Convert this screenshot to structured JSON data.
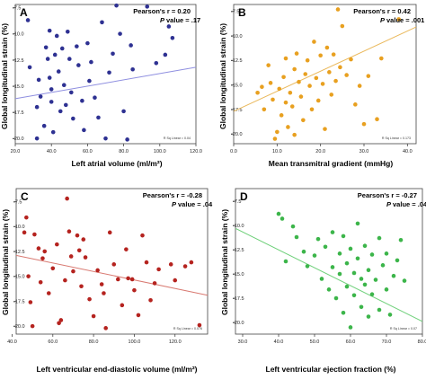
{
  "colors": {
    "A": "#2e3192",
    "B": "#e8a020",
    "C": "#b5231f",
    "D": "#3cb54a",
    "line_A": "#8f8fe0",
    "line_B": "#eab85a",
    "line_C": "#d97a72",
    "line_D": "#6fd07a"
  },
  "chart_data": [
    {
      "type": "scatter",
      "panel": "A",
      "xlabel": "Left atrial volume (ml/m²)",
      "ylabel": "Global longitudinal strain (%)",
      "xlim": [
        20,
        120
      ],
      "ylim": [
        -20.5,
        -7.2
      ],
      "xticks": [
        "20.0",
        "40.0",
        "60.0",
        "80.0",
        "100.0",
        "120.0"
      ],
      "yticks": [
        "-7.5",
        "-10.0",
        "-12.5",
        "-15.0",
        "-17.5",
        "-20.0"
      ],
      "stat_line1": "Pearson's r = 0.20",
      "stat_p_label": "P",
      "stat_p_value": "value = .17",
      "r_sq_label": "R Sq Linear = 0.04",
      "fit": {
        "x": [
          20,
          120
        ],
        "y": [
          -16.2,
          -13.2
        ]
      },
      "points": [
        {
          "x": 27,
          "y": -8.7
        },
        {
          "x": 28,
          "y": -13.2
        },
        {
          "x": 32,
          "y": -17.0
        },
        {
          "x": 32,
          "y": -20.0
        },
        {
          "x": 33,
          "y": -14.4
        },
        {
          "x": 34,
          "y": -16.0
        },
        {
          "x": 36,
          "y": -18.8
        },
        {
          "x": 37,
          "y": -11.3
        },
        {
          "x": 38,
          "y": -12.4
        },
        {
          "x": 39,
          "y": -9.7
        },
        {
          "x": 39,
          "y": -14.2
        },
        {
          "x": 40,
          "y": -15.3
        },
        {
          "x": 40,
          "y": -16.5
        },
        {
          "x": 41,
          "y": -19.4
        },
        {
          "x": 42,
          "y": -12.0
        },
        {
          "x": 43,
          "y": -10.2
        },
        {
          "x": 44,
          "y": -13.6
        },
        {
          "x": 45,
          "y": -17.4
        },
        {
          "x": 46,
          "y": -11.4
        },
        {
          "x": 47,
          "y": -14.9
        },
        {
          "x": 48,
          "y": -16.8
        },
        {
          "x": 49,
          "y": -9.8
        },
        {
          "x": 50,
          "y": -12.4
        },
        {
          "x": 51,
          "y": -15.6
        },
        {
          "x": 52,
          "y": -18.1
        },
        {
          "x": 54,
          "y": -11.2
        },
        {
          "x": 55,
          "y": -13.0
        },
        {
          "x": 57,
          "y": -16.4
        },
        {
          "x": 58,
          "y": -19.2
        },
        {
          "x": 60,
          "y": -10.9
        },
        {
          "x": 61,
          "y": -14.5
        },
        {
          "x": 62,
          "y": -12.7
        },
        {
          "x": 64,
          "y": -16.1
        },
        {
          "x": 66,
          "y": -18.0
        },
        {
          "x": 68,
          "y": -8.9
        },
        {
          "x": 70,
          "y": -20.0
        },
        {
          "x": 72,
          "y": -13.7
        },
        {
          "x": 74,
          "y": -11.9
        },
        {
          "x": 76,
          "y": -7.3
        },
        {
          "x": 78,
          "y": -10.0
        },
        {
          "x": 80,
          "y": -17.4
        },
        {
          "x": 82,
          "y": -20.1
        },
        {
          "x": 84,
          "y": -11.1
        },
        {
          "x": 85,
          "y": -13.4
        },
        {
          "x": 93,
          "y": -7.4
        },
        {
          "x": 98,
          "y": -12.8
        },
        {
          "x": 103,
          "y": -12.0
        },
        {
          "x": 105,
          "y": -9.3
        },
        {
          "x": 107,
          "y": -10.4
        }
      ]
    },
    {
      "type": "scatter",
      "panel": "B",
      "xlabel": "Mean transmitral gradient (mmHg)",
      "ylabel": "Global longitudinal strain (%)",
      "xlim": [
        0,
        42
      ],
      "ylim": [
        -21.0,
        -6.8
      ],
      "xticks": [
        "0.0",
        "10.0",
        "20.0",
        "30.0",
        "40.0"
      ],
      "yticks": [
        "-7.5",
        "-10.0",
        "-12.5",
        "-15.0",
        "-17.5",
        "-20.0"
      ],
      "stat_line1": "Pearson's r = 0.42",
      "stat_p_label": "P",
      "stat_p_value": "value = .001",
      "r_sq_label": "R Sq Linear = 0.173",
      "fit": {
        "x": [
          0,
          42
        ],
        "y": [
          -17.7,
          -9.1
        ]
      },
      "points": [
        {
          "x": 5.5,
          "y": -15.8
        },
        {
          "x": 6.5,
          "y": -15.2
        },
        {
          "x": 7,
          "y": -17.5
        },
        {
          "x": 8,
          "y": -13.0
        },
        {
          "x": 8.5,
          "y": -14.8
        },
        {
          "x": 9,
          "y": -16.5
        },
        {
          "x": 9.5,
          "y": -20.5
        },
        {
          "x": 10,
          "y": -19.8
        },
        {
          "x": 10.5,
          "y": -15.4
        },
        {
          "x": 11,
          "y": -18.1
        },
        {
          "x": 11.5,
          "y": -14.2
        },
        {
          "x": 12,
          "y": -16.8
        },
        {
          "x": 12,
          "y": -12.3
        },
        {
          "x": 12.5,
          "y": -19.3
        },
        {
          "x": 13,
          "y": -15.8
        },
        {
          "x": 13.5,
          "y": -17.2
        },
        {
          "x": 14,
          "y": -13.4
        },
        {
          "x": 14,
          "y": -20.1
        },
        {
          "x": 14.5,
          "y": -11.8
        },
        {
          "x": 15,
          "y": -14.7
        },
        {
          "x": 15.5,
          "y": -16.2
        },
        {
          "x": 16,
          "y": -18.6
        },
        {
          "x": 16.5,
          "y": -13.9
        },
        {
          "x": 17,
          "y": -12.5
        },
        {
          "x": 17.5,
          "y": -15.1
        },
        {
          "x": 18,
          "y": -17.5
        },
        {
          "x": 18.5,
          "y": -10.6
        },
        {
          "x": 19,
          "y": -14.3
        },
        {
          "x": 19.5,
          "y": -16.6
        },
        {
          "x": 20,
          "y": -12.0
        },
        {
          "x": 20.5,
          "y": -14.9
        },
        {
          "x": 21,
          "y": -19.5
        },
        {
          "x": 21.5,
          "y": -11.2
        },
        {
          "x": 22,
          "y": -13.7
        },
        {
          "x": 22.5,
          "y": -16.0
        },
        {
          "x": 23,
          "y": -11.9
        },
        {
          "x": 23.5,
          "y": -14.6
        },
        {
          "x": 24,
          "y": -7.3
        },
        {
          "x": 24.5,
          "y": -13.2
        },
        {
          "x": 25,
          "y": -9.0
        },
        {
          "x": 26,
          "y": -14.0
        },
        {
          "x": 27,
          "y": -12.4
        },
        {
          "x": 28,
          "y": -17.0
        },
        {
          "x": 29,
          "y": -15.1
        },
        {
          "x": 30,
          "y": -19.0
        },
        {
          "x": 31,
          "y": -14.1
        },
        {
          "x": 33,
          "y": -18.5
        },
        {
          "x": 34,
          "y": -12.3
        },
        {
          "x": 38,
          "y": -8.3
        }
      ]
    },
    {
      "type": "scatter",
      "panel": "C",
      "xlabel": "Left ventricular end-diastolic volume (ml/m²)",
      "ylabel": "Global longitudinal strain (%)",
      "xlim": [
        42,
        136
      ],
      "ylim": [
        -20.8,
        -6.2
      ],
      "xticks": [
        "40.0",
        "60.0",
        "80.0",
        "100.0",
        "120.0"
      ],
      "yticks": [
        "-7.5",
        "-10.0",
        "-12.5",
        "-15.0",
        "-17.5",
        "-20.0"
      ],
      "stat_line1": "Pearson's r = -0.28",
      "stat_p_label": "P",
      "stat_p_value": "value = .04",
      "r_sq_label": "R Sq Linear = 0.076",
      "fit": {
        "x": [
          42,
          136
        ],
        "y": [
          -12.9,
          -16.9
        ]
      },
      "points": [
        {
          "x": 46,
          "y": -10.6
        },
        {
          "x": 47,
          "y": -9.1
        },
        {
          "x": 48,
          "y": -15.0
        },
        {
          "x": 49,
          "y": -17.6
        },
        {
          "x": 50,
          "y": -20.0
        },
        {
          "x": 51,
          "y": -10.8
        },
        {
          "x": 53,
          "y": -12.2
        },
        {
          "x": 54,
          "y": -15.6
        },
        {
          "x": 55,
          "y": -13.2
        },
        {
          "x": 56,
          "y": -12.5
        },
        {
          "x": 58,
          "y": -16.7
        },
        {
          "x": 60,
          "y": -14.2
        },
        {
          "x": 62,
          "y": -11.8
        },
        {
          "x": 63,
          "y": -19.7
        },
        {
          "x": 64,
          "y": -19.4
        },
        {
          "x": 66,
          "y": -15.4
        },
        {
          "x": 67,
          "y": -7.2
        },
        {
          "x": 68,
          "y": -10.5
        },
        {
          "x": 69,
          "y": -13.0
        },
        {
          "x": 70,
          "y": -14.5
        },
        {
          "x": 72,
          "y": -10.9
        },
        {
          "x": 73,
          "y": -12.4
        },
        {
          "x": 74,
          "y": -16.0
        },
        {
          "x": 75,
          "y": -11.3
        },
        {
          "x": 76,
          "y": -13.1
        },
        {
          "x": 78,
          "y": -17.3
        },
        {
          "x": 80,
          "y": -19.0
        },
        {
          "x": 82,
          "y": -14.4
        },
        {
          "x": 84,
          "y": -15.8
        },
        {
          "x": 85,
          "y": -16.7
        },
        {
          "x": 86,
          "y": -20.2
        },
        {
          "x": 88,
          "y": -10.6
        },
        {
          "x": 90,
          "y": -13.8
        },
        {
          "x": 92,
          "y": -15.3
        },
        {
          "x": 94,
          "y": -17.9
        },
        {
          "x": 96,
          "y": -12.3
        },
        {
          "x": 97,
          "y": -15.2
        },
        {
          "x": 99,
          "y": -15.3
        },
        {
          "x": 100,
          "y": -16.4
        },
        {
          "x": 102,
          "y": -18.9
        },
        {
          "x": 104,
          "y": -10.9
        },
        {
          "x": 106,
          "y": -13.6
        },
        {
          "x": 108,
          "y": -17.4
        },
        {
          "x": 110,
          "y": -15.7
        },
        {
          "x": 112,
          "y": -14.3
        },
        {
          "x": 118,
          "y": -13.8
        },
        {
          "x": 120,
          "y": -15.4
        },
        {
          "x": 125,
          "y": -14.0
        },
        {
          "x": 128,
          "y": -13.6
        },
        {
          "x": 132,
          "y": -19.9
        }
      ]
    },
    {
      "type": "scatter",
      "panel": "D",
      "xlabel": "Left ventricular ejection fraction (%)",
      "ylabel": "Global longitudinal strain (%)",
      "xlim": [
        28,
        80
      ],
      "ylim": [
        -21.2,
        -6.2
      ],
      "xticks": [
        "30.0",
        "40.0",
        "50.0",
        "60.0",
        "70.0",
        "80.0"
      ],
      "yticks": [
        "-7.5",
        "-10.0",
        "-12.5",
        "-15.0",
        "-17.5",
        "-20.0"
      ],
      "stat_line1": "Pearson's r = -0.27",
      "stat_p_label": "P",
      "stat_p_value": "value = .046",
      "r_sq_label": "R Sq Linear = 0.07",
      "fit": {
        "x": [
          28,
          80
        ],
        "y": [
          -10.3,
          -19.9
        ]
      },
      "points": [
        {
          "x": 40,
          "y": -8.8
        },
        {
          "x": 41,
          "y": -9.3
        },
        {
          "x": 42,
          "y": -13.7
        },
        {
          "x": 44,
          "y": -10.1
        },
        {
          "x": 45,
          "y": -11.2
        },
        {
          "x": 47,
          "y": -12.7
        },
        {
          "x": 48,
          "y": -14.2
        },
        {
          "x": 50,
          "y": -13.1
        },
        {
          "x": 51,
          "y": -11.4
        },
        {
          "x": 52,
          "y": -15.5
        },
        {
          "x": 53,
          "y": -12.2
        },
        {
          "x": 54,
          "y": -16.6
        },
        {
          "x": 55,
          "y": -10.7
        },
        {
          "x": 55,
          "y": -14.3
        },
        {
          "x": 56,
          "y": -17.5
        },
        {
          "x": 57,
          "y": -12.9
        },
        {
          "x": 57,
          "y": -15.0
        },
        {
          "x": 58,
          "y": -19.0
        },
        {
          "x": 58,
          "y": -11.1
        },
        {
          "x": 59,
          "y": -13.9
        },
        {
          "x": 59,
          "y": -16.3
        },
        {
          "x": 60,
          "y": -12.4
        },
        {
          "x": 60,
          "y": -20.5
        },
        {
          "x": 61,
          "y": -14.9
        },
        {
          "x": 61,
          "y": -17.2
        },
        {
          "x": 62,
          "y": -9.8
        },
        {
          "x": 62,
          "y": -13.4
        },
        {
          "x": 63,
          "y": -15.5
        },
        {
          "x": 63,
          "y": -18.4
        },
        {
          "x": 64,
          "y": -12.1
        },
        {
          "x": 64,
          "y": -16.1
        },
        {
          "x": 65,
          "y": -14.6
        },
        {
          "x": 65,
          "y": -19.4
        },
        {
          "x": 66,
          "y": -17.1
        },
        {
          "x": 66,
          "y": -13.0
        },
        {
          "x": 67,
          "y": -15.6
        },
        {
          "x": 68,
          "y": -11.3
        },
        {
          "x": 68,
          "y": -18.7
        },
        {
          "x": 69,
          "y": -14.1
        },
        {
          "x": 70,
          "y": -16.6
        },
        {
          "x": 70,
          "y": -12.9
        },
        {
          "x": 71,
          "y": -19.2
        },
        {
          "x": 72,
          "y": -15.2
        },
        {
          "x": 73,
          "y": -13.6
        },
        {
          "x": 74,
          "y": -11.5
        },
        {
          "x": 75,
          "y": -15.7
        }
      ]
    }
  ]
}
